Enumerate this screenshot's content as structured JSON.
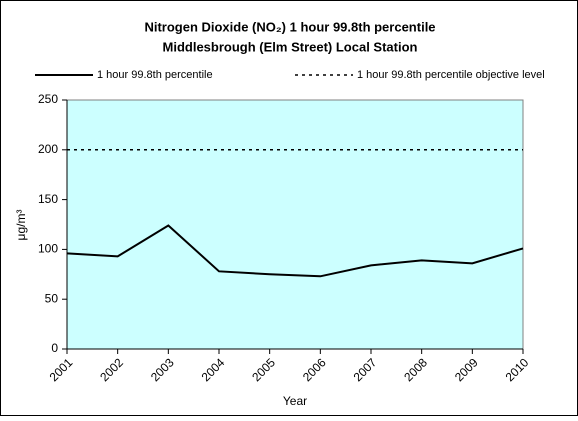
{
  "chart_data": {
    "type": "line",
    "title": [
      "Nitrogen Dioxide (NO₂) 1 hour 99.8th percentile",
      "Middlesbrough (Elm Street) Local Station"
    ],
    "categories": [
      "2001",
      "2002",
      "2003",
      "2004",
      "2005",
      "2006",
      "2007",
      "2008",
      "2009",
      "2010"
    ],
    "series": [
      {
        "name": "1 hour 99.8th percentile",
        "color": "#000000",
        "linestyle": "solid",
        "values": [
          96,
          93,
          124,
          78,
          75,
          73,
          84,
          89,
          86,
          101
        ]
      },
      {
        "name": "1 hour 99.8th percentile objective level",
        "color": "#000000",
        "linestyle": "dotted",
        "values": [
          200,
          200,
          200,
          200,
          200,
          200,
          200,
          200,
          200,
          200
        ]
      }
    ],
    "ylim": [
      0,
      250
    ],
    "yticks": [
      0,
      50,
      100,
      150,
      200,
      250
    ],
    "xlabel": "Year",
    "ylabel": "μg/m³",
    "background": "#ccffff"
  }
}
